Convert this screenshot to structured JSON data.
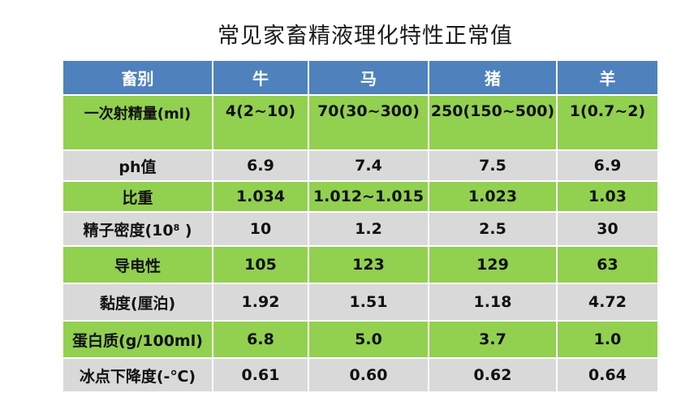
{
  "title": "常见家畜精液理化特性正常值",
  "table": {
    "headers": [
      "畜别",
      "牛",
      "马",
      "猪",
      "羊"
    ],
    "rows": [
      {
        "label": "一次射精量(ml)",
        "values": [
          "4(2~10)",
          "70(30~300)",
          "250(150~500)",
          "1(0.7~2)"
        ],
        "color": "#92d050"
      },
      {
        "label": "ph值",
        "values": [
          "6.9",
          "7.4",
          "7.5",
          "6.9"
        ],
        "color": "#d9d9d9"
      },
      {
        "label": "比重",
        "values": [
          "1.034",
          "1.012~1.015",
          "1.023",
          "1.03"
        ],
        "color": "#92d050"
      },
      {
        "label_main": "精子密度(10",
        "label_sup": "8",
        "label_end": " )",
        "values": [
          "10",
          "1.2",
          "2.5",
          "30"
        ],
        "color": "#d9d9d9"
      },
      {
        "label": "导电性",
        "values": [
          "105",
          "123",
          "129",
          "63"
        ],
        "color": "#92d050"
      },
      {
        "label": "黏度(厘泊)",
        "values": [
          "1.92",
          "1.51",
          "1.18",
          "4.72"
        ],
        "color": "#d9d9d9"
      },
      {
        "label": "蛋白质(g/100ml)",
        "values": [
          "6.8",
          "5.0",
          "3.7",
          "1.0"
        ],
        "color": "#92d050"
      },
      {
        "label": "冰点下降度(-℃)",
        "values": [
          "0.61",
          "0.60",
          "0.62",
          "0.64"
        ],
        "color": "#d9d9d9"
      }
    ]
  },
  "colors": {
    "header_bg": "#4f81bd",
    "header_text": "#ffffff",
    "row_green": "#92d050",
    "row_gray": "#d9d9d9"
  }
}
